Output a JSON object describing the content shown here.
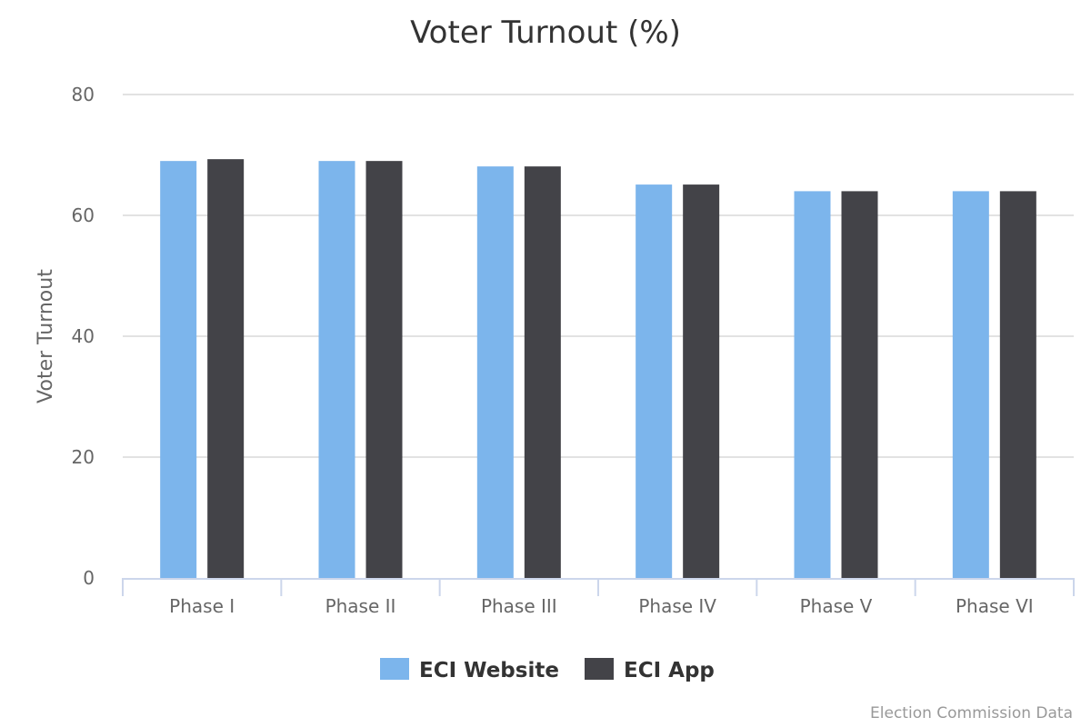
{
  "chart_data": {
    "type": "bar",
    "title": "Voter Turnout (%)",
    "xlabel": "",
    "ylabel": "Voter Turnout",
    "ylim": [
      0,
      80
    ],
    "yticks": [
      0,
      20,
      40,
      60,
      80
    ],
    "grid": true,
    "legend_position": "bottom-center",
    "categories": [
      "Phase I",
      "Phase II",
      "Phase III",
      "Phase IV",
      "Phase V",
      "Phase VI"
    ],
    "series": [
      {
        "name": "ECI Website",
        "color": "#7cb5ec",
        "values": [
          69,
          69,
          68.1,
          65.1,
          64,
          64
        ]
      },
      {
        "name": "ECI App",
        "color": "#434348",
        "values": [
          69.3,
          69,
          68.1,
          65.1,
          64,
          64
        ]
      }
    ],
    "credits": "Election Commission Data"
  }
}
